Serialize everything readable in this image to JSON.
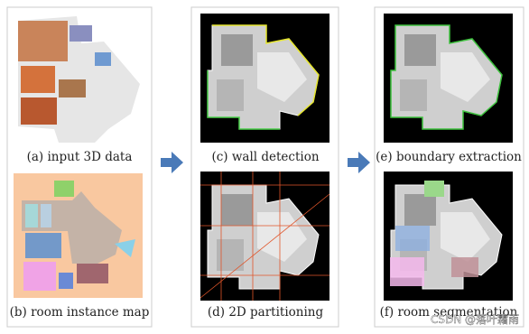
{
  "panels": [
    {
      "caption": "(a) input 3D data"
    },
    {
      "caption": "(b) room instance map"
    },
    {
      "caption": "(c) wall detection"
    },
    {
      "caption": "(d) 2D partitioning"
    },
    {
      "caption": "(e) boundary extraction"
    },
    {
      "caption": "(f) room segmentation"
    }
  ],
  "watermark": "CSDN @落叶霜雨"
}
